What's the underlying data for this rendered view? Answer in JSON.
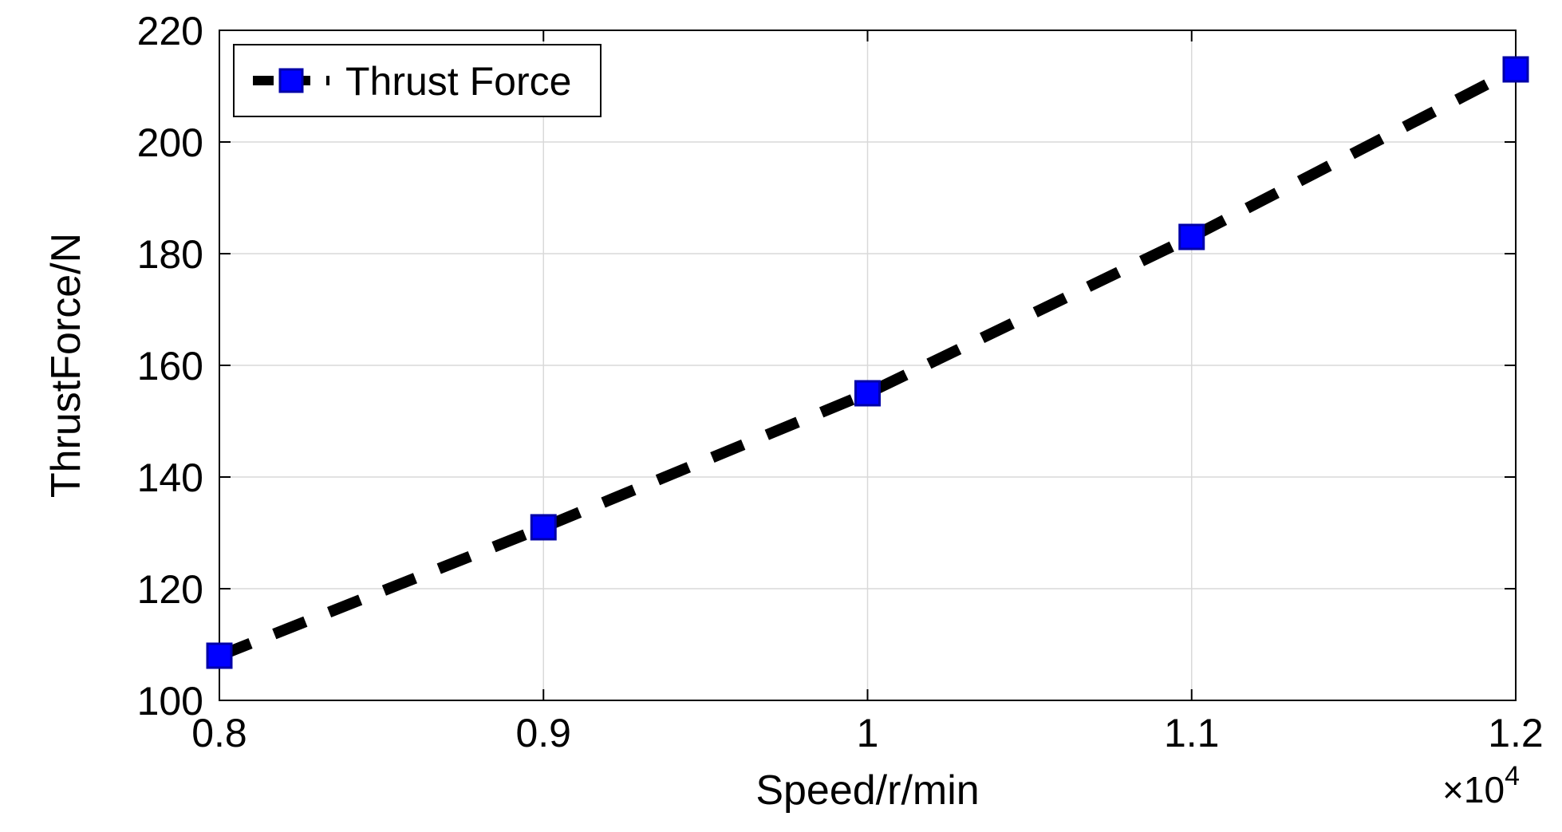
{
  "chart": {
    "type": "line",
    "background_color": "#ffffff",
    "plot_box_stroke": "#000000",
    "plot_box_stroke_width": 2,
    "grid_color": "#d9d9d9",
    "grid_width": 1.5,
    "xlabel": "Speed/r/min",
    "ylabel": "ThrustForce/N",
    "label_fontsize": 52,
    "tick_fontsize": 50,
    "x": {
      "lim": [
        0.8,
        1.2
      ],
      "ticks": [
        0.8,
        0.9,
        1,
        1.1,
        1.2
      ],
      "tick_labels": [
        "0.8",
        "0.9",
        "1",
        "1.1",
        "1.2"
      ],
      "exponent_label": "×10",
      "exponent_sup": "4"
    },
    "y": {
      "lim": [
        100,
        220
      ],
      "ticks": [
        100,
        120,
        140,
        160,
        180,
        200,
        220
      ],
      "tick_labels": [
        "100",
        "120",
        "140",
        "160",
        "180",
        "200",
        "220"
      ]
    },
    "series": [
      {
        "name": "Thrust Force",
        "x": [
          0.8,
          0.9,
          1.0,
          1.1,
          1.2
        ],
        "y": [
          108,
          131,
          155,
          183,
          213
        ],
        "line_color": "#000000",
        "line_width": 14,
        "dash": "42 32",
        "marker": "square",
        "marker_size": 30,
        "marker_fill": "#0000ff",
        "marker_stroke": "#0000a8",
        "marker_stroke_width": 3
      }
    ],
    "legend": {
      "position": "top-left-inside",
      "border_color": "#000000",
      "border_width": 2,
      "bg": "#ffffff",
      "label": "Thrust Force"
    }
  }
}
